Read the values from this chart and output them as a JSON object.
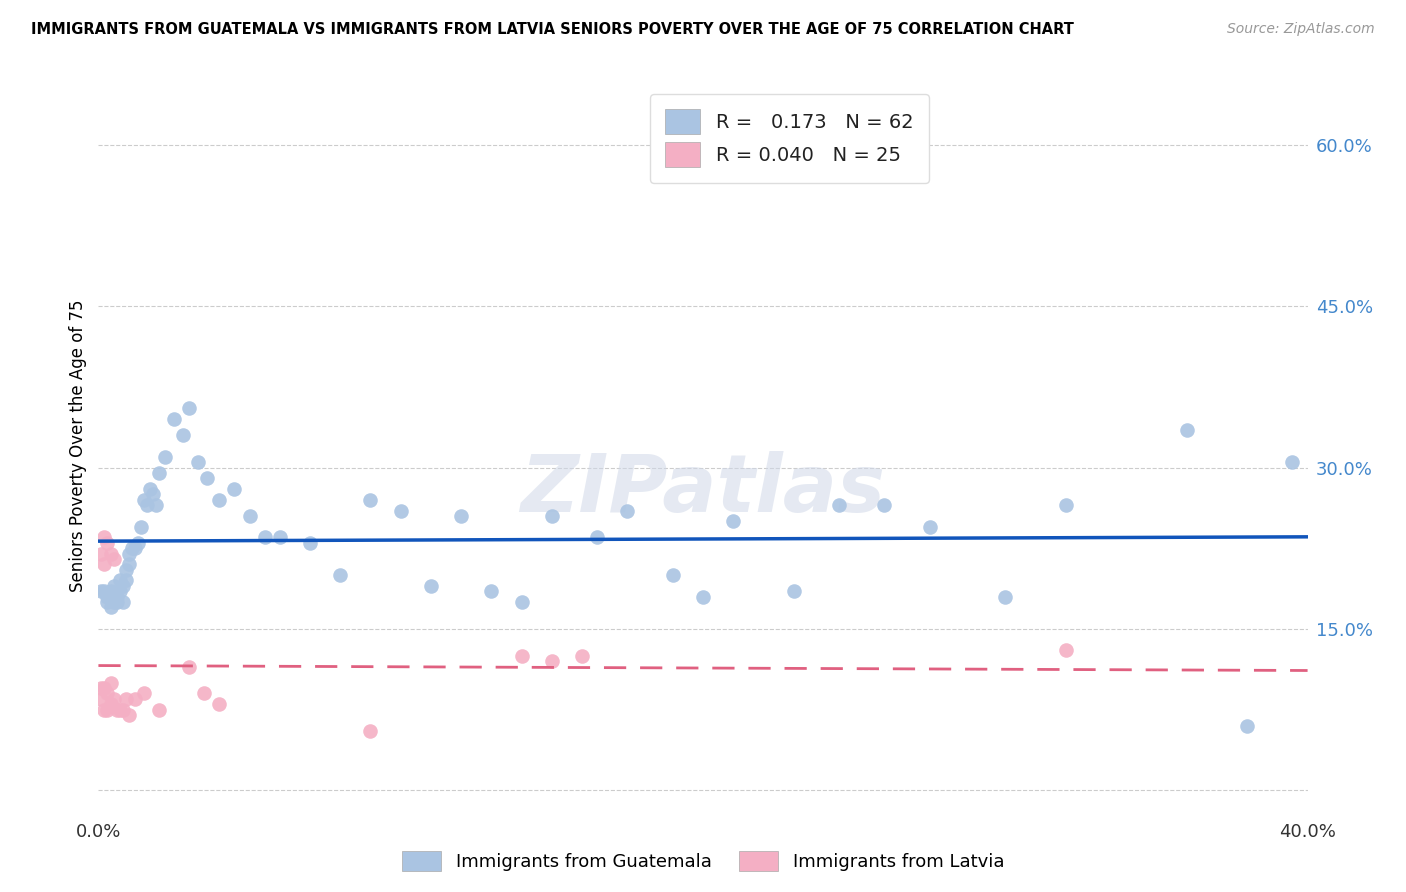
{
  "title": "IMMIGRANTS FROM GUATEMALA VS IMMIGRANTS FROM LATVIA SENIORS POVERTY OVER THE AGE OF 75 CORRELATION CHART",
  "source": "Source: ZipAtlas.com",
  "ylabel": "Seniors Poverty Over the Age of 75",
  "x_min": 0.0,
  "x_max": 0.4,
  "y_min": -0.02,
  "y_max": 0.66,
  "x_ticks": [
    0.0,
    0.1,
    0.2,
    0.3,
    0.4
  ],
  "x_tick_labels": [
    "0.0%",
    "",
    "",
    "",
    "40.0%"
  ],
  "y_ticks": [
    0.0,
    0.15,
    0.3,
    0.45,
    0.6
  ],
  "y_tick_labels": [
    "",
    "15.0%",
    "30.0%",
    "45.0%",
    "60.0%"
  ],
  "guatemala_R": 0.173,
  "guatemala_N": 62,
  "latvia_R": 0.04,
  "latvia_N": 25,
  "guatemala_color": "#aac4e2",
  "latvia_color": "#f4afc4",
  "trend_guatemala_color": "#1155bb",
  "trend_latvia_color": "#e06080",
  "legend_guatemala_label": "Immigrants from Guatemala",
  "legend_latvia_label": "Immigrants from Latvia",
  "watermark": "ZIPatlas",
  "guatemala_x": [
    0.001,
    0.002,
    0.003,
    0.003,
    0.004,
    0.004,
    0.005,
    0.005,
    0.006,
    0.006,
    0.007,
    0.007,
    0.008,
    0.008,
    0.009,
    0.009,
    0.01,
    0.01,
    0.011,
    0.012,
    0.013,
    0.014,
    0.015,
    0.016,
    0.017,
    0.018,
    0.019,
    0.02,
    0.022,
    0.025,
    0.028,
    0.03,
    0.033,
    0.036,
    0.04,
    0.045,
    0.05,
    0.055,
    0.06,
    0.07,
    0.08,
    0.09,
    0.1,
    0.11,
    0.12,
    0.13,
    0.14,
    0.15,
    0.165,
    0.175,
    0.19,
    0.2,
    0.21,
    0.23,
    0.245,
    0.26,
    0.275,
    0.3,
    0.32,
    0.36,
    0.38,
    0.395
  ],
  "guatemala_y": [
    0.185,
    0.185,
    0.18,
    0.175,
    0.17,
    0.185,
    0.175,
    0.19,
    0.175,
    0.18,
    0.185,
    0.195,
    0.175,
    0.19,
    0.195,
    0.205,
    0.21,
    0.22,
    0.225,
    0.225,
    0.23,
    0.245,
    0.27,
    0.265,
    0.28,
    0.275,
    0.265,
    0.295,
    0.31,
    0.345,
    0.33,
    0.355,
    0.305,
    0.29,
    0.27,
    0.28,
    0.255,
    0.235,
    0.235,
    0.23,
    0.2,
    0.27,
    0.26,
    0.19,
    0.255,
    0.185,
    0.175,
    0.255,
    0.235,
    0.26,
    0.2,
    0.18,
    0.25,
    0.185,
    0.265,
    0.265,
    0.245,
    0.18,
    0.265,
    0.335,
    0.06,
    0.305
  ],
  "latvia_x": [
    0.001,
    0.001,
    0.002,
    0.002,
    0.003,
    0.003,
    0.004,
    0.004,
    0.005,
    0.006,
    0.007,
    0.008,
    0.009,
    0.01,
    0.012,
    0.015,
    0.02,
    0.03,
    0.035,
    0.04,
    0.09,
    0.14,
    0.15,
    0.16,
    0.32
  ],
  "latvia_y": [
    0.085,
    0.095,
    0.075,
    0.095,
    0.075,
    0.09,
    0.1,
    0.08,
    0.085,
    0.075,
    0.075,
    0.075,
    0.085,
    0.07,
    0.085,
    0.09,
    0.075,
    0.115,
    0.09,
    0.08,
    0.055,
    0.125,
    0.12,
    0.125,
    0.13
  ],
  "latvia_extra_x": [
    0.001,
    0.002,
    0.002,
    0.003,
    0.004,
    0.005
  ],
  "latvia_extra_y": [
    0.22,
    0.21,
    0.235,
    0.23,
    0.22,
    0.215
  ]
}
